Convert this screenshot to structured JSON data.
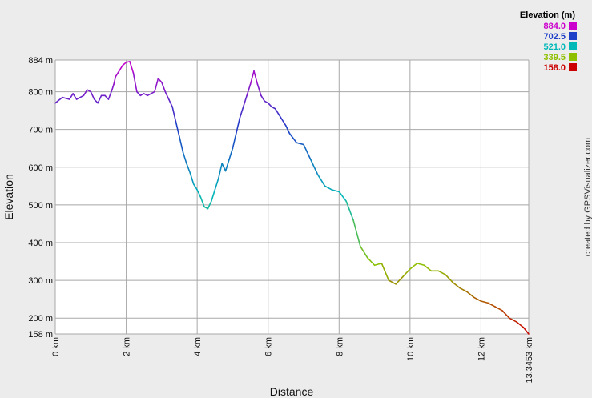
{
  "chart_data": {
    "type": "line",
    "xlabel": "Distance",
    "ylabel": "Elevation",
    "xlim": [
      0,
      13.3453
    ],
    "ylim": [
      158,
      884
    ],
    "grid": true,
    "x_ticks": [
      {
        "value": 0,
        "label": "0 km"
      },
      {
        "value": 2,
        "label": "2 km"
      },
      {
        "value": 4,
        "label": "4 km"
      },
      {
        "value": 6,
        "label": "6 km"
      },
      {
        "value": 8,
        "label": "8 km"
      },
      {
        "value": 10,
        "label": "10 km"
      },
      {
        "value": 12,
        "label": "12 km"
      },
      {
        "value": 13.3453,
        "label": "13.3453 km"
      }
    ],
    "y_ticks": [
      {
        "value": 884,
        "label": "884 m"
      },
      {
        "value": 800,
        "label": "800 m"
      },
      {
        "value": 700,
        "label": "700 m"
      },
      {
        "value": 600,
        "label": "600 m"
      },
      {
        "value": 500,
        "label": "500 m"
      },
      {
        "value": 400,
        "label": "400 m"
      },
      {
        "value": 300,
        "label": "300 m"
      },
      {
        "value": 200,
        "label": "200 m"
      },
      {
        "value": 158,
        "label": "158 m"
      }
    ],
    "series": [
      {
        "x": [
          0,
          0.2,
          0.4,
          0.5,
          0.6,
          0.8,
          0.9,
          1.0,
          1.1,
          1.2,
          1.3,
          1.4,
          1.5,
          1.6,
          1.65,
          1.7,
          1.8,
          1.9,
          2.0,
          2.1,
          2.2,
          2.3,
          2.4,
          2.5,
          2.6,
          2.7,
          2.8,
          2.9,
          3.0,
          3.1,
          3.2,
          3.3,
          3.4,
          3.5,
          3.6,
          3.7,
          3.8,
          3.9,
          4.0,
          4.1,
          4.2,
          4.3,
          4.4,
          4.5,
          4.6,
          4.7,
          4.8,
          4.9,
          5.0,
          5.1,
          5.2,
          5.3,
          5.4,
          5.5,
          5.6,
          5.7,
          5.8,
          5.9,
          6.0,
          6.1,
          6.2,
          6.3,
          6.5,
          6.6,
          6.8,
          7.0,
          7.2,
          7.4,
          7.6,
          7.8,
          8.0,
          8.2,
          8.4,
          8.6,
          8.8,
          9.0,
          9.2,
          9.4,
          9.6,
          9.8,
          10.0,
          10.2,
          10.4,
          10.6,
          10.8,
          11.0,
          11.2,
          11.4,
          11.6,
          11.8,
          12.0,
          12.2,
          12.4,
          12.6,
          12.8,
          13.0,
          13.2,
          13.3453
        ],
        "y": [
          770,
          785,
          780,
          795,
          780,
          790,
          805,
          800,
          780,
          770,
          790,
          790,
          780,
          805,
          820,
          840,
          855,
          870,
          878,
          880,
          850,
          800,
          790,
          795,
          790,
          795,
          800,
          835,
          825,
          800,
          780,
          760,
          720,
          680,
          640,
          610,
          585,
          555,
          540,
          520,
          495,
          490,
          510,
          540,
          570,
          610,
          590,
          620,
          650,
          690,
          730,
          760,
          790,
          820,
          855,
          820,
          790,
          775,
          770,
          760,
          755,
          740,
          710,
          690,
          665,
          660,
          620,
          580,
          550,
          540,
          535,
          510,
          460,
          390,
          360,
          340,
          345,
          300,
          290,
          310,
          330,
          345,
          340,
          325,
          325,
          315,
          295,
          280,
          270,
          255,
          245,
          240,
          230,
          220,
          200,
          190,
          175,
          158
        ]
      }
    ],
    "legend": {
      "title": "Elevation (m)",
      "placement": "top-right",
      "entries": [
        {
          "label": "884.0",
          "color": "#cc00cc"
        },
        {
          "label": "702.5",
          "color": "#1f3fc8"
        },
        {
          "label": "521.0",
          "color": "#00b8b8"
        },
        {
          "label": "339.5",
          "color": "#8ec000"
        },
        {
          "label": "158.0",
          "color": "#cc0000"
        }
      ]
    }
  },
  "credit": "created by GPSVisualizer.com",
  "colors": {
    "background": "#ececec",
    "plot_background": "#ffffff",
    "grid": "#a8a8a8"
  }
}
